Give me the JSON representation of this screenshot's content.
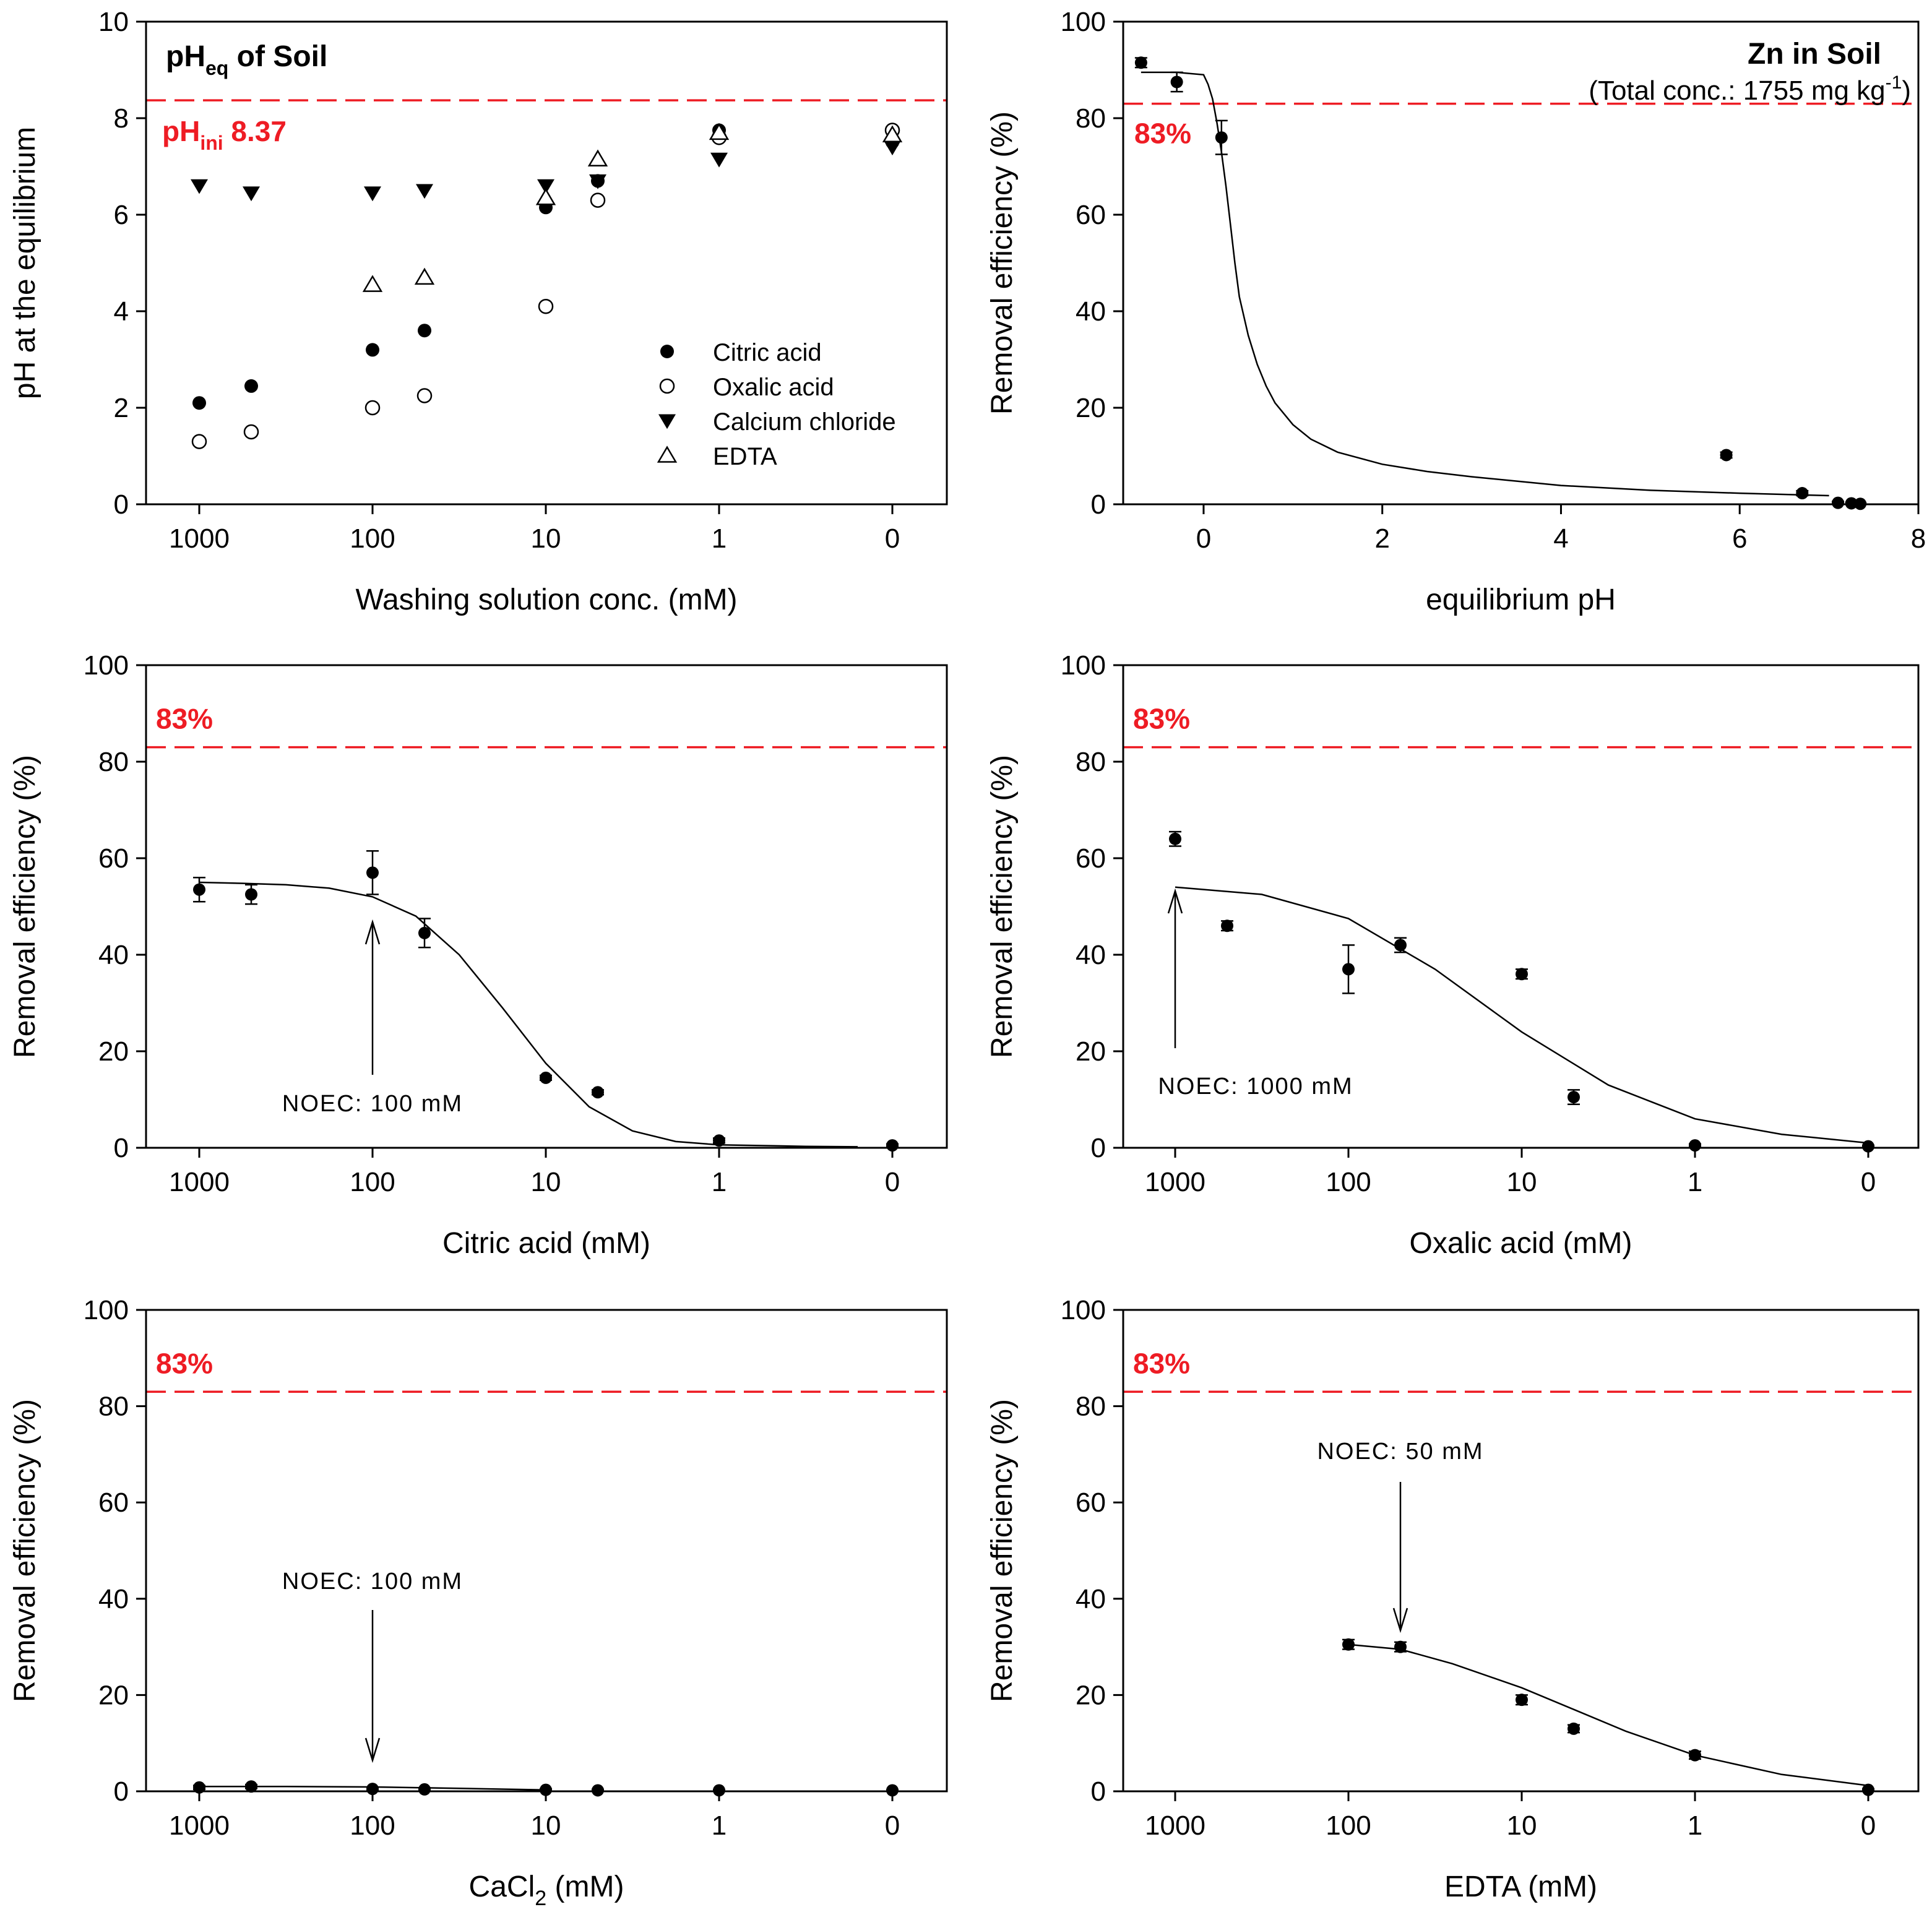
{
  "colors": {
    "reference_line": "#ee1c24",
    "axis": "#000000",
    "marker": "#000000",
    "background": "#ffffff"
  },
  "chart_data": [
    {
      "id": "ph",
      "type": "scatter",
      "title": {
        "main": "pH",
        "sub": "eq",
        "tail": " of Soil"
      },
      "reference": {
        "y": 8.37,
        "label_main": "pH",
        "label_sub": "ini",
        "label_tail": " 8.37"
      },
      "xlabel": "Washing solution conc. (mM)",
      "ylabel": "pH at the equilibrium",
      "ylim": [
        0,
        10
      ],
      "yticks": [
        0,
        2,
        4,
        6,
        8,
        10
      ],
      "x_positions": [
        "1000",
        "500",
        "100",
        "50",
        "10",
        "5",
        "1",
        "0"
      ],
      "xticks": [
        "1000",
        "100",
        "10",
        "1",
        "0"
      ],
      "legend": {
        "position": "bottom-right",
        "entries": [
          {
            "label": "Citric acid",
            "marker": "circle-filled"
          },
          {
            "label": "Oxalic acid",
            "marker": "circle-open"
          },
          {
            "label": "Calcium chloride",
            "marker": "triangle-down-filled"
          },
          {
            "label": "EDTA",
            "marker": "triangle-up-open"
          }
        ]
      },
      "series": [
        {
          "name": "Citric acid",
          "marker": "circle-filled",
          "x": [
            "1000",
            "500",
            "100",
            "50",
            "10",
            "5",
            "1",
            "0"
          ],
          "values": [
            2.1,
            2.45,
            3.2,
            3.6,
            6.15,
            6.7,
            7.75,
            7.5
          ]
        },
        {
          "name": "Oxalic acid",
          "marker": "circle-open",
          "x": [
            "1000",
            "500",
            "100",
            "50",
            "10",
            "5",
            "1",
            "0"
          ],
          "values": [
            1.3,
            1.5,
            2.0,
            2.25,
            4.1,
            6.3,
            7.6,
            7.75
          ]
        },
        {
          "name": "Calcium chloride",
          "marker": "triangle-down-filled",
          "x": [
            "1000",
            "500",
            "100",
            "50",
            "10",
            "5",
            "1",
            "0"
          ],
          "values": [
            6.6,
            6.45,
            6.45,
            6.5,
            6.6,
            6.7,
            7.15,
            7.4
          ]
        },
        {
          "name": "EDTA",
          "marker": "triangle-up-open",
          "x": [
            "100",
            "50",
            "10",
            "5",
            "1",
            "0"
          ],
          "values": [
            4.55,
            4.7,
            6.35,
            7.15,
            7.7,
            7.65
          ]
        }
      ]
    },
    {
      "id": "zn",
      "type": "scatter",
      "title": {
        "main": "Zn in Soil"
      },
      "subtitle": {
        "pre": "(Total conc.: 1755 mg kg",
        "sup": "-1",
        "post": ")"
      },
      "reference": {
        "y": 83,
        "label": "83%"
      },
      "xlabel": "equilibrium pH",
      "ylabel": "Removal efficiency (%)",
      "xlim": [
        -0.9,
        8
      ],
      "xticks": [
        0,
        2,
        4,
        6,
        8
      ],
      "ylim": [
        0,
        100
      ],
      "yticks": [
        0,
        20,
        40,
        60,
        80,
        100
      ],
      "points": [
        {
          "x": -0.7,
          "y": 91.5,
          "err": 1.0
        },
        {
          "x": -0.3,
          "y": 87.5,
          "err": 2.0
        },
        {
          "x": 0.2,
          "y": 76.0,
          "err": 3.5
        },
        {
          "x": 5.85,
          "y": 10.2,
          "err": 0.6
        },
        {
          "x": 6.7,
          "y": 2.3,
          "err": 0.5
        },
        {
          "x": 7.1,
          "y": 0.3,
          "err": 0.3
        },
        {
          "x": 7.25,
          "y": 0.2,
          "err": 0.2
        },
        {
          "x": 7.35,
          "y": 0.1,
          "err": 0.2
        }
      ],
      "fit": {
        "x": [
          -0.7,
          -0.3,
          0.0,
          0.05,
          0.1,
          0.15,
          0.2,
          0.25,
          0.3,
          0.35,
          0.4,
          0.5,
          0.6,
          0.7,
          0.8,
          1.0,
          1.2,
          1.5,
          2.0,
          2.5,
          3.0,
          4.0,
          5.0,
          6.0,
          7.0
        ],
        "y": [
          89.5,
          89.5,
          89.0,
          87.0,
          84.0,
          79.0,
          73.0,
          66.0,
          58.0,
          50.0,
          43.0,
          35.0,
          29.0,
          24.5,
          21.0,
          16.5,
          13.5,
          10.8,
          8.3,
          6.8,
          5.7,
          3.9,
          2.9,
          2.3,
          1.8
        ]
      }
    },
    {
      "id": "citric",
      "type": "scatter",
      "reference": {
        "y": 83,
        "label": "83%"
      },
      "xlabel": "Citric acid (mM)",
      "ylabel": "Removal efficiency (%)",
      "ylim": [
        0,
        100
      ],
      "yticks": [
        0,
        20,
        40,
        60,
        80,
        100
      ],
      "xticks": [
        "1000",
        "100",
        "10",
        "1",
        "0"
      ],
      "points": [
        {
          "x": "1000",
          "y": 53.5,
          "err": 2.5
        },
        {
          "x": "500",
          "y": 52.5,
          "err": 2.0
        },
        {
          "x": "100",
          "y": 57.0,
          "err": 4.5
        },
        {
          "x": "50",
          "y": 44.5,
          "err": 3.0
        },
        {
          "x": "10",
          "y": 14.5,
          "err": 0.5
        },
        {
          "x": "5",
          "y": 11.5,
          "err": 0.5
        },
        {
          "x": "1",
          "y": 1.5,
          "err": 0.5
        },
        {
          "x": "0",
          "y": 0.5,
          "err": 0.3
        }
      ],
      "fit": {
        "decades": [
          0,
          0.25,
          0.5,
          0.75,
          1.0,
          1.25,
          1.5,
          1.75,
          2.0,
          2.25,
          2.5,
          2.75,
          3.0,
          3.5,
          3.8
        ],
        "y": [
          55.0,
          54.8,
          54.5,
          53.8,
          52.0,
          48.0,
          40.0,
          29.0,
          17.5,
          8.5,
          3.5,
          1.3,
          0.6,
          0.3,
          0.2
        ]
      },
      "annotation": {
        "text": "NOEC: 100 mM",
        "x": "100",
        "direction": "up"
      }
    },
    {
      "id": "oxalic",
      "type": "scatter",
      "reference": {
        "y": 83,
        "label": "83%"
      },
      "xlabel": "Oxalic acid (mM)",
      "ylabel": "Removal efficiency (%)",
      "ylim": [
        0,
        100
      ],
      "yticks": [
        0,
        20,
        40,
        60,
        80,
        100
      ],
      "xticks": [
        "1000",
        "100",
        "10",
        "1",
        "0"
      ],
      "points": [
        {
          "x": "1000",
          "y": 64.0,
          "err": 1.5
        },
        {
          "x": "500",
          "y": 46.0,
          "err": 1.0
        },
        {
          "x": "100",
          "y": 37.0,
          "err": 5.0
        },
        {
          "x": "50",
          "y": 42.0,
          "err": 1.5
        },
        {
          "x": "10",
          "y": 36.0,
          "err": 1.0
        },
        {
          "x": "5",
          "y": 10.5,
          "err": 1.5
        },
        {
          "x": "1",
          "y": 0.5,
          "err": 0.3
        },
        {
          "x": "0",
          "y": 0.3,
          "err": 0.2
        }
      ],
      "fit": {
        "decades": [
          0,
          0.5,
          1.0,
          1.5,
          2.0,
          2.5,
          3.0,
          3.5,
          4.0
        ],
        "y": [
          54.0,
          52.5,
          47.5,
          37.0,
          24.0,
          13.0,
          6.0,
          2.8,
          1.0
        ]
      },
      "annotation": {
        "text": "NOEC: 1000 mM",
        "x": "1000",
        "direction": "up"
      }
    },
    {
      "id": "cacl2",
      "type": "scatter",
      "reference": {
        "y": 83,
        "label": "83%"
      },
      "xlabel_pre": "CaCl",
      "xlabel_sub": "2",
      "xlabel_post": " (mM)",
      "ylabel": "Removal efficiency (%)",
      "ylim": [
        0,
        100
      ],
      "yticks": [
        0,
        20,
        40,
        60,
        80,
        100
      ],
      "xticks": [
        "1000",
        "100",
        "10",
        "1",
        "0"
      ],
      "points": [
        {
          "x": "1000",
          "y": 0.8,
          "err": 0.4
        },
        {
          "x": "500",
          "y": 1.0,
          "err": 0.4
        },
        {
          "x": "100",
          "y": 0.5,
          "err": 0.3
        },
        {
          "x": "50",
          "y": 0.4,
          "err": 0.3
        },
        {
          "x": "10",
          "y": 0.3,
          "err": 0.2
        },
        {
          "x": "5",
          "y": 0.2,
          "err": 0.2
        },
        {
          "x": "1",
          "y": 0.2,
          "err": 0.1
        },
        {
          "x": "0",
          "y": 0.2,
          "err": 0.1
        }
      ],
      "fit": {
        "decades": [
          0,
          0.5,
          1.0,
          1.5,
          2.0
        ],
        "y": [
          1.0,
          1.0,
          0.9,
          0.6,
          0.3
        ]
      },
      "annotation": {
        "text": "NOEC: 100 mM",
        "x": "100",
        "direction": "down"
      }
    },
    {
      "id": "edta",
      "type": "scatter",
      "reference": {
        "y": 83,
        "label": "83%"
      },
      "xlabel": "EDTA (mM)",
      "ylabel": "Removal efficiency (%)",
      "ylim": [
        0,
        100
      ],
      "yticks": [
        0,
        20,
        40,
        60,
        80,
        100
      ],
      "xticks": [
        "1000",
        "100",
        "10",
        "1",
        "0"
      ],
      "points": [
        {
          "x": "100",
          "y": 30.5,
          "err": 1.0
        },
        {
          "x": "50",
          "y": 30.0,
          "err": 1.0
        },
        {
          "x": "10",
          "y": 19.0,
          "err": 1.0
        },
        {
          "x": "5",
          "y": 13.0,
          "err": 0.8
        },
        {
          "x": "1",
          "y": 7.5,
          "err": 0.8
        },
        {
          "x": "0",
          "y": 0.3,
          "err": 0.2
        }
      ],
      "fit": {
        "decades": [
          1.0,
          1.3,
          1.6,
          2.0,
          2.3,
          2.6,
          3.0,
          3.5,
          4.0
        ],
        "y": [
          30.5,
          29.5,
          26.5,
          21.5,
          17.0,
          12.5,
          7.5,
          3.5,
          1.2
        ]
      },
      "annotation": {
        "text": "NOEC: 50 mM",
        "x": "50",
        "direction": "down"
      }
    }
  ]
}
